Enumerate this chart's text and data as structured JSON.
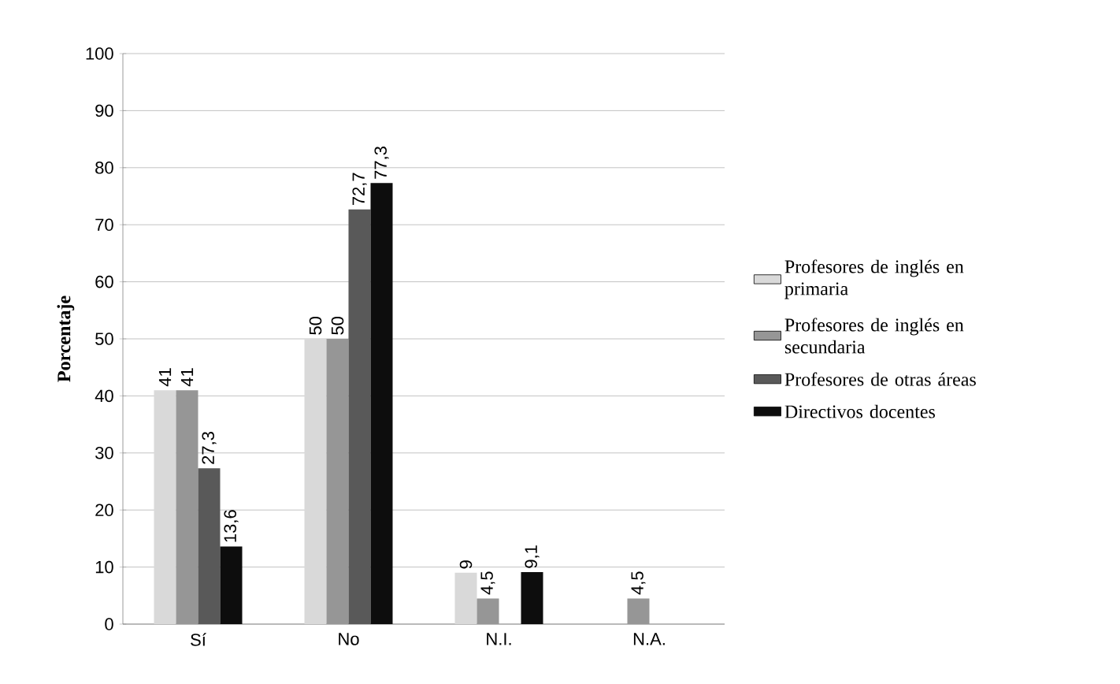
{
  "chart_data": {
    "type": "bar",
    "ylabel": "Porcentaje",
    "categories": [
      "Sí",
      "No",
      "N.I.",
      "N.A."
    ],
    "series": [
      {
        "name": "Profesores de inglés en primaria",
        "color": "#d9d9d9",
        "values": [
          41,
          50,
          9,
          null
        ],
        "value_labels": [
          "41",
          "50",
          "9",
          null
        ]
      },
      {
        "name": "Profesores de inglés en secundaria",
        "color": "#969696",
        "values": [
          41,
          50,
          4.5,
          4.5
        ],
        "value_labels": [
          "41",
          "50",
          "4,5",
          "4,5"
        ]
      },
      {
        "name": "Profesores de otras áreas",
        "color": "#595959",
        "values": [
          27.3,
          72.7,
          null,
          null
        ],
        "value_labels": [
          "27,3",
          "72,7",
          null,
          null
        ]
      },
      {
        "name": "Directivos docentes",
        "color": "#0d0d0d",
        "values": [
          13.6,
          77.3,
          9.1,
          null
        ],
        "value_labels": [
          "13,6",
          "77,3",
          "9,1",
          null
        ]
      }
    ],
    "ylim": [
      0,
      100
    ],
    "yticks": [
      0,
      10,
      20,
      30,
      40,
      50,
      60,
      70,
      80,
      90,
      100
    ],
    "grid": "y",
    "legend": "right"
  }
}
